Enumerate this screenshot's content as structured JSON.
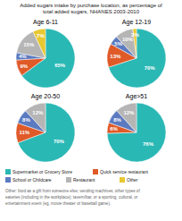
{
  "title": "Added sugars intake by purchase location, as percentage of\ntotal added sugars, NHANES 2003-2010",
  "annotations": [
    "Other: food as a gift from someone else; vending machines; other types of\neateries (including in the workplace); tavern/bar, or a sporting, cultural, or\nentertainment event (eg, movie theater or baseball game)."
  ],
  "legend": "bottom",
  "chart_data": [
    {
      "type": "pie",
      "title": "Age 6-11",
      "categories": [
        "Supermarket or Grocery Store",
        "Quick service restaurant",
        "School or Childcare",
        "Restaurant",
        "Other"
      ],
      "values": [
        65,
        9,
        4,
        15,
        7
      ],
      "value_labels": [
        "65%",
        "9%",
        "4%",
        "15%",
        "7%"
      ],
      "colors": [
        "#2ab8b5",
        "#e05a28",
        "#5b7ac0",
        "#b5b5b5",
        "#e8c832"
      ],
      "data_labels": true
    },
    {
      "type": "pie",
      "title": "Age 12-19",
      "categories": [
        "Supermarket or Grocery Store",
        "Quick service restaurant",
        "School or Childcare",
        "Restaurant",
        "Other"
      ],
      "values": [
        70,
        13,
        5,
        10,
        2
      ],
      "value_labels": [
        "70%",
        "13%",
        "5%",
        "10%",
        "2%"
      ],
      "colors": [
        "#2ab8b5",
        "#e05a28",
        "#5b7ac0",
        "#b5b5b5",
        "#e8c832"
      ],
      "data_labels": true
    },
    {
      "type": "pie",
      "title": "Age 20-50",
      "categories": [
        "Supermarket or Grocery Store",
        "Quick service restaurant",
        "School or Childcare",
        "Restaurant"
      ],
      "values": [
        70,
        11,
        8,
        12
      ],
      "value_labels": [
        "70%",
        "11%",
        "8%",
        "12%"
      ],
      "colors": [
        "#2ab8b5",
        "#e05a28",
        "#5b7ac0",
        "#b5b5b5"
      ],
      "data_labels": true
    },
    {
      "type": "pie",
      "title": "Age>51",
      "categories": [
        "Supermarket or Grocery Store",
        "Quick service restaurant",
        "School or Childcare",
        "Restaurant"
      ],
      "values": [
        76,
        6,
        8,
        12
      ],
      "value_labels": [
        "76%",
        "6%",
        "8%",
        "12%"
      ],
      "colors": [
        "#2ab8b5",
        "#e05a28",
        "#5b7ac0",
        "#b5b5b5"
      ],
      "data_labels": true
    }
  ]
}
